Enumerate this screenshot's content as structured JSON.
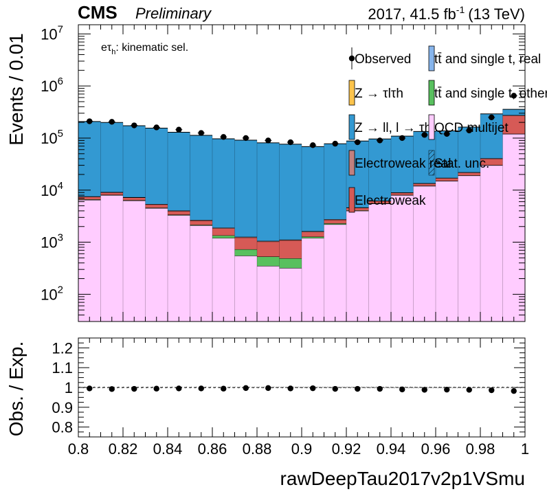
{
  "header": {
    "experiment": "CMS",
    "status": "Preliminary",
    "lumi_prefix": "2017, 41.5 fb",
    "lumi_exp": "-1",
    "lumi_suffix": "(13 TeV)"
  },
  "annotation": {
    "base": "eτ",
    "sub": "h",
    "rest": ": kinematic sel."
  },
  "legend": [
    {
      "id": "obs",
      "label": "Observed",
      "color": "#000000",
      "style": "marker"
    },
    {
      "id": "ttreal",
      "label": "tt̄ and single t, real",
      "color": "#87b5ec",
      "style": "fill"
    },
    {
      "id": "ztt",
      "label": "Z → τlτh",
      "color": "#fcc44c",
      "style": "fill"
    },
    {
      "id": "ttoth",
      "label": "tt̄ and single t, other",
      "color": "#58c05e",
      "style": "fill"
    },
    {
      "id": "zll",
      "label": "Z → ll, l → τh",
      "color": "#3399d2",
      "style": "fill"
    },
    {
      "id": "qcd",
      "label": "QCD multijet",
      "color": "#ffccff",
      "style": "fill"
    },
    {
      "id": "ewreal",
      "label": "Electroweak real",
      "color": "#c1807f",
      "style": "fill"
    },
    {
      "id": "stat",
      "label": "Stat. unc.",
      "color": "#000000",
      "style": "hatch"
    },
    {
      "id": "ew",
      "label": "Electroweak",
      "color": "#d65a56",
      "style": "fill"
    }
  ],
  "chart_data": {
    "type": "bar",
    "stacked": true,
    "xlabel": "rawDeepTau2017v2p1VSmu",
    "ylabel": "Events / 0.01",
    "ratio_ylabel": "Obs. / Exp.",
    "xlim": [
      0.8,
      1.0
    ],
    "ylim": [
      30,
      15000000
    ],
    "yscale": "log",
    "ratio_ylim": [
      0.75,
      1.25
    ],
    "x_ticks": [
      "0.8",
      "0.82",
      "0.84",
      "0.86",
      "0.88",
      "0.9",
      "0.92",
      "0.94",
      "0.96",
      "0.98",
      "1"
    ],
    "y_ticks": [
      {
        "value": 100,
        "base": "10",
        "exp": "2"
      },
      {
        "value": 1000,
        "base": "10",
        "exp": "3"
      },
      {
        "value": 10000,
        "base": "10",
        "exp": "4"
      },
      {
        "value": 100000,
        "base": "10",
        "exp": "5"
      },
      {
        "value": 1000000,
        "base": "10",
        "exp": "6"
      },
      {
        "value": 10000000,
        "base": "10",
        "exp": "7"
      }
    ],
    "ratio_ticks": [
      "0.8",
      "0.9",
      "1",
      "1.1",
      "1.2"
    ],
    "ratio_tick_values": [
      0.8,
      0.9,
      1.0,
      1.1,
      1.2
    ],
    "bin_edges": [
      0.8,
      0.81,
      0.82,
      0.83,
      0.84,
      0.85,
      0.86,
      0.87,
      0.88,
      0.89,
      0.9,
      0.91,
      0.92,
      0.93,
      0.94,
      0.95,
      0.96,
      0.97,
      0.98,
      0.99,
      1.0
    ],
    "series": [
      {
        "name": "QCD multijet",
        "color": "#ffccff",
        "values": [
          6500,
          8000,
          6300,
          4500,
          3300,
          2100,
          1200,
          550,
          350,
          320,
          1200,
          2200,
          4000,
          5500,
          8000,
          12000,
          15000,
          19000,
          30000,
          120000
        ]
      },
      {
        "name": "tt̄ and single t, other",
        "color": "#58c05e",
        "values": [
          150,
          140,
          120,
          100,
          80,
          60,
          150,
          180,
          180,
          170,
          80,
          100,
          80,
          80,
          100,
          150,
          150,
          200,
          300,
          1000
        ]
      },
      {
        "name": "Electroweak",
        "color": "#d65a56",
        "values": [
          800,
          900,
          800,
          700,
          600,
          450,
          500,
          500,
          500,
          600,
          300,
          400,
          500,
          600,
          800,
          1200,
          1800,
          2500,
          10000,
          150000
        ]
      },
      {
        "name": "Electroweak real",
        "color": "#c1807f",
        "values": [
          150,
          150,
          120,
          100,
          80,
          60,
          50,
          40,
          30,
          30,
          50,
          60,
          80,
          100,
          150,
          250,
          300,
          400,
          600,
          5000
        ]
      },
      {
        "name": "Z → ll, l → τh",
        "color": "#3399d2",
        "values": [
          200000,
          190000,
          165000,
          150000,
          125000,
          110000,
          95000,
          90000,
          80000,
          75000,
          67000,
          75000,
          83000,
          90000,
          100000,
          120000,
          120000,
          140000,
          250000,
          80000
        ]
      },
      {
        "name": "Z → τlτh",
        "color": "#fcc44c",
        "values": [
          0,
          0,
          0,
          0,
          0,
          0,
          0,
          0,
          0,
          0,
          0,
          0,
          0,
          0,
          0,
          0,
          0,
          0,
          0,
          0
        ]
      },
      {
        "name": "tt̄ and single t, real",
        "color": "#87b5ec",
        "values": [
          0,
          0,
          0,
          0,
          0,
          0,
          0,
          0,
          0,
          0,
          0,
          0,
          0,
          0,
          0,
          0,
          0,
          0,
          0,
          0
        ]
      }
    ],
    "observed": {
      "name": "Observed",
      "x": [
        0.805,
        0.815,
        0.825,
        0.835,
        0.845,
        0.855,
        0.865,
        0.875,
        0.885,
        0.895,
        0.905,
        0.915,
        0.925,
        0.935,
        0.945,
        0.955,
        0.965,
        0.975,
        0.985,
        0.995
      ],
      "values": [
        210000,
        205000,
        175000,
        160000,
        145000,
        125000,
        105000,
        100000,
        90000,
        83000,
        73000,
        78000,
        83000,
        90000,
        100000,
        115000,
        120000,
        140000,
        250000,
        650000
      ],
      "ratio": [
        0.995,
        0.992,
        0.993,
        0.994,
        0.995,
        0.995,
        0.994,
        0.997,
        0.997,
        0.995,
        0.996,
        0.993,
        0.993,
        0.993,
        0.99,
        0.988,
        0.989,
        0.988,
        0.986,
        0.982
      ]
    }
  }
}
